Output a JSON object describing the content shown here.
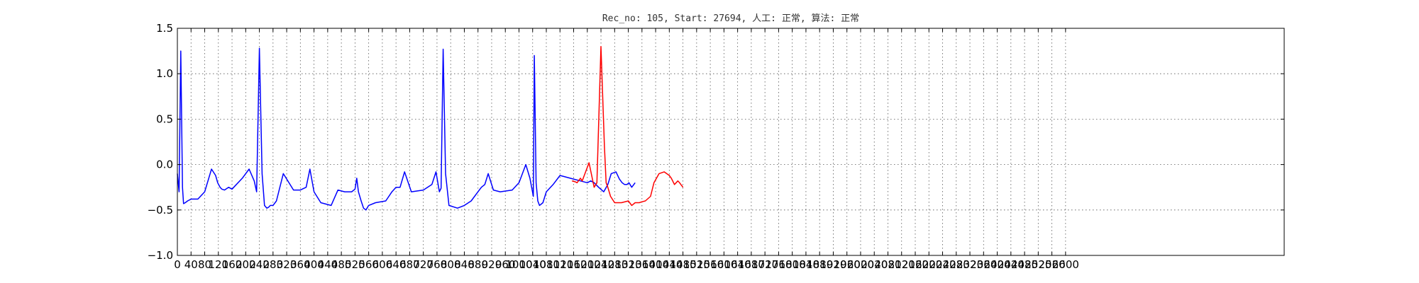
{
  "chart_data": {
    "type": "line",
    "title": "Rec_no: 105, Start: 27694, 人工: 正常, 算法: 正常",
    "xlabel": "",
    "ylabel": "",
    "xlim": [
      0,
      3240
    ],
    "ylim": [
      -1.0,
      1.5
    ],
    "grid": true,
    "y_ticks": [
      -1.0,
      -0.5,
      0.0,
      0.5,
      1.0,
      1.5
    ],
    "y_tick_labels": [
      "−1.0",
      "−0.5",
      "0.0",
      "0.5",
      "1.0",
      "1.5"
    ],
    "x_ticks": [
      0,
      40,
      80,
      120,
      160,
      200,
      240,
      280,
      320,
      360,
      400,
      440,
      480,
      520,
      560,
      600,
      640,
      680,
      720,
      760,
      800,
      840,
      880,
      920,
      960,
      1000,
      1040,
      1080,
      1120,
      1160,
      1200,
      1240,
      1280,
      1320,
      1360,
      1400,
      1440,
      1480,
      1520,
      1560,
      1600,
      1640,
      1680,
      1720,
      1760,
      1800,
      1840,
      1880,
      1920,
      1960,
      2000,
      2040,
      2080,
      2120,
      2160,
      2200,
      2240,
      2280,
      2320,
      2360,
      2400,
      2440,
      2480,
      2520,
      2560,
      2600
    ],
    "series": [
      {
        "color": "#0000ff",
        "x": [
          0,
          5,
          10,
          15,
          18,
          23,
          30,
          40,
          60,
          80,
          100,
          112,
          118,
          125,
          130,
          138,
          150,
          160,
          190,
          210,
          225,
          232,
          240,
          248,
          255,
          262,
          267,
          272,
          280,
          290,
          310,
          340,
          360,
          377,
          388,
          400,
          420,
          450,
          470,
          490,
          510,
          520,
          525,
          530,
          538,
          545,
          552,
          560,
          580,
          610,
          628,
          640,
          652,
          665,
          685,
          720,
          745,
          757,
          767,
          772,
          778,
          785,
          795,
          820,
          840,
          860,
          880,
          890,
          900,
          910,
          925,
          945,
          980,
          1000,
          1020,
          1032,
          1042,
          1045,
          1050,
          1055,
          1060,
          1070,
          1080,
          1100,
          1120,
          1150,
          1180,
          1200,
          1210,
          1220,
          1233,
          1248,
          1260,
          1270,
          1284,
          1294,
          1302,
          1309,
          1316,
          1322,
          1330,
          1340
        ],
        "y": [
          -0.1,
          -0.3,
          1.25,
          -0.25,
          -0.43,
          -0.42,
          -0.4,
          -0.38,
          -0.38,
          -0.3,
          -0.05,
          -0.12,
          -0.2,
          -0.25,
          -0.27,
          -0.28,
          -0.25,
          -0.27,
          -0.15,
          -0.05,
          -0.18,
          -0.3,
          1.28,
          -0.1,
          -0.45,
          -0.48,
          -0.47,
          -0.45,
          -0.45,
          -0.4,
          -0.1,
          -0.28,
          -0.28,
          -0.25,
          -0.05,
          -0.3,
          -0.42,
          -0.45,
          -0.28,
          -0.3,
          -0.3,
          -0.27,
          -0.15,
          -0.3,
          -0.4,
          -0.48,
          -0.5,
          -0.45,
          -0.42,
          -0.4,
          -0.3,
          -0.25,
          -0.25,
          -0.08,
          -0.3,
          -0.28,
          -0.22,
          -0.08,
          -0.3,
          -0.26,
          1.27,
          -0.1,
          -0.45,
          -0.48,
          -0.45,
          -0.4,
          -0.3,
          -0.25,
          -0.22,
          -0.1,
          -0.28,
          -0.3,
          -0.28,
          -0.2,
          0.0,
          -0.15,
          -0.35,
          1.2,
          -0.2,
          -0.4,
          -0.45,
          -0.42,
          -0.3,
          -0.22,
          -0.12,
          -0.15,
          -0.18,
          -0.2,
          -0.18,
          -0.2,
          -0.25,
          -0.3,
          -0.22,
          -0.1,
          -0.08,
          -0.16,
          -0.2,
          -0.22,
          -0.22,
          -0.2,
          -0.25,
          -0.2
        ]
      },
      {
        "color": "#ff0000",
        "x": [
          1155,
          1165,
          1170,
          1180,
          1185,
          1195,
          1205,
          1220,
          1228,
          1240,
          1250,
          1255,
          1260,
          1268,
          1280,
          1300,
          1320,
          1330,
          1340,
          1345,
          1352,
          1360,
          1370,
          1385,
          1395,
          1410,
          1425,
          1440,
          1446,
          1455,
          1465,
          1470,
          1480
        ],
        "y": [
          -0.18,
          -0.19,
          -0.2,
          -0.15,
          -0.18,
          -0.08,
          0.02,
          -0.25,
          -0.2,
          1.3,
          0.2,
          -0.2,
          -0.25,
          -0.35,
          -0.42,
          -0.42,
          -0.4,
          -0.45,
          -0.42,
          -0.42,
          -0.42,
          -0.41,
          -0.4,
          -0.35,
          -0.2,
          -0.1,
          -0.08,
          -0.12,
          -0.15,
          -0.22,
          -0.18,
          -0.2,
          -0.25
        ]
      }
    ]
  }
}
